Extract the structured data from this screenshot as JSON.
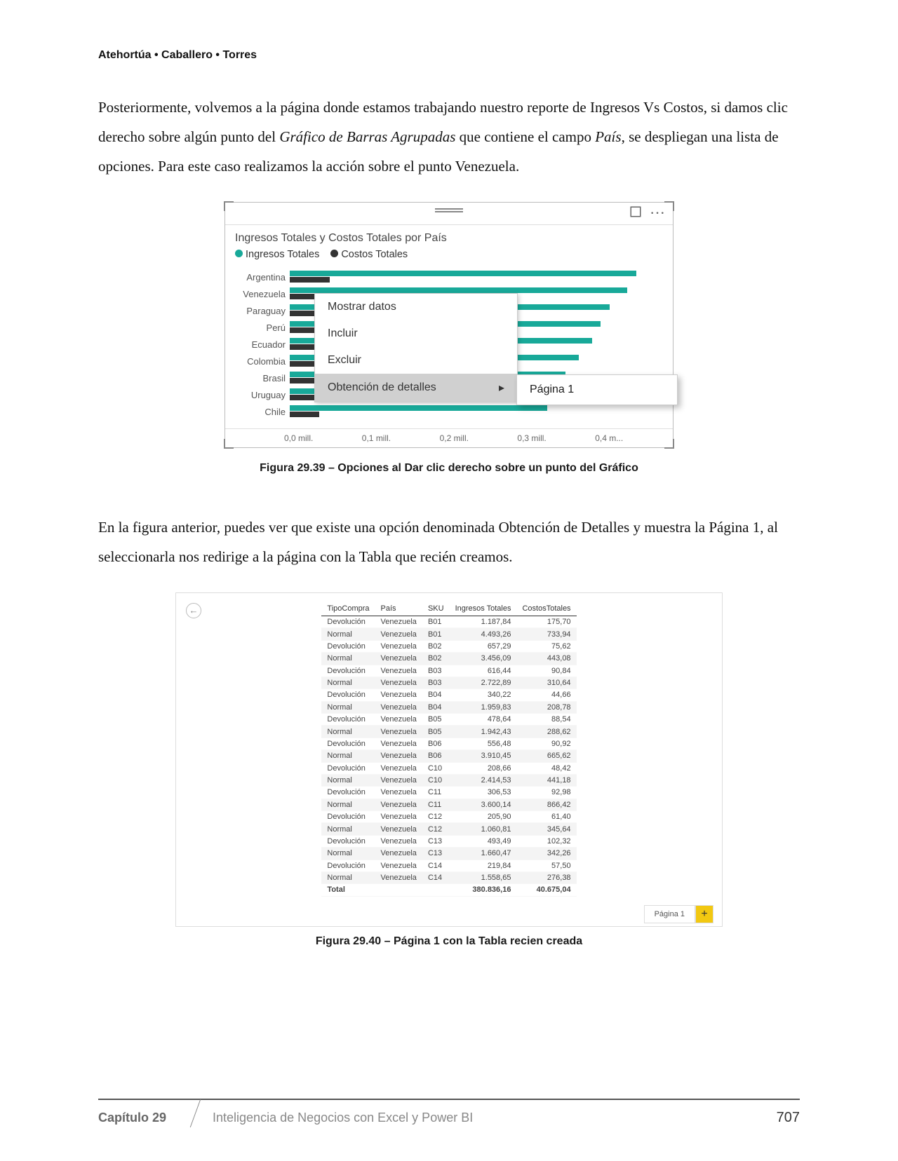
{
  "header": {
    "authors": "Atehortúa • Caballero • Torres"
  },
  "paragraphs": {
    "p1a": "Posteriormente, volvemos a la página donde estamos trabajando nuestro reporte de Ingresos Vs Costos, si damos clic derecho sobre algún punto del ",
    "p1b": "Gráfico de Barras Agrupadas",
    "p1c": " que contiene el campo ",
    "p1d": "País",
    "p1e": ", se despliegan una lista de opciones. Para este caso realizamos la acción sobre el punto Venezuela.",
    "p2": "En la figura anterior, puedes ver que existe una opción denominada Obtención de Detalles y muestra la Página 1, al seleccionarla nos redirige a la página con la Tabla que recién creamos."
  },
  "chart": {
    "title": "Ingresos Totales y Costos Totales por País",
    "legend1": "Ingresos Totales",
    "legend2": "Costos Totales",
    "color1": "#18a999",
    "color2": "#333333",
    "categories": [
      "Argentina",
      "Venezuela",
      "Paraguay",
      "Perú",
      "Ecuador",
      "Colombia",
      "Brasil",
      "Uruguay",
      "Chile"
    ],
    "ingresos": [
      0.39,
      0.38,
      0.36,
      0.35,
      0.34,
      0.325,
      0.31,
      0.3,
      0.29
    ],
    "costos": [
      0.045,
      0.042,
      0.04,
      0.038,
      0.037,
      0.036,
      0.035,
      0.034,
      0.033
    ],
    "xlim": 0.42,
    "xticks": [
      "0,0 mill.",
      "0,1 mill.",
      "0,2 mill.",
      "0,3 mill.",
      "0,4 m..."
    ],
    "ctx": {
      "item1": "Mostrar datos",
      "item2": "Incluir",
      "item3": "Excluir",
      "item4": "Obtención de detalles",
      "sub": "Página 1"
    }
  },
  "caption1": "Figura 29.39 – Opciones al Dar clic derecho sobre un punto del Gráfico",
  "table": {
    "columns": [
      "TipoCompra",
      "País",
      "SKU",
      "Ingresos Totales",
      "CostosTotales"
    ],
    "rows": [
      [
        "Devolución",
        "Venezuela",
        "B01",
        "1.187,84",
        "175,70"
      ],
      [
        "Normal",
        "Venezuela",
        "B01",
        "4.493,26",
        "733,94"
      ],
      [
        "Devolución",
        "Venezuela",
        "B02",
        "657,29",
        "75,62"
      ],
      [
        "Normal",
        "Venezuela",
        "B02",
        "3.456,09",
        "443,08"
      ],
      [
        "Devolución",
        "Venezuela",
        "B03",
        "616,44",
        "90,84"
      ],
      [
        "Normal",
        "Venezuela",
        "B03",
        "2.722,89",
        "310,64"
      ],
      [
        "Devolución",
        "Venezuela",
        "B04",
        "340,22",
        "44,66"
      ],
      [
        "Normal",
        "Venezuela",
        "B04",
        "1.959,83",
        "208,78"
      ],
      [
        "Devolución",
        "Venezuela",
        "B05",
        "478,64",
        "88,54"
      ],
      [
        "Normal",
        "Venezuela",
        "B05",
        "1.942,43",
        "288,62"
      ],
      [
        "Devolución",
        "Venezuela",
        "B06",
        "556,48",
        "90,92"
      ],
      [
        "Normal",
        "Venezuela",
        "B06",
        "3.910,45",
        "665,62"
      ],
      [
        "Devolución",
        "Venezuela",
        "C10",
        "208,66",
        "48,42"
      ],
      [
        "Normal",
        "Venezuela",
        "C10",
        "2.414,53",
        "441,18"
      ],
      [
        "Devolución",
        "Venezuela",
        "C11",
        "306,53",
        "92,98"
      ],
      [
        "Normal",
        "Venezuela",
        "C11",
        "3.600,14",
        "866,42"
      ],
      [
        "Devolución",
        "Venezuela",
        "C12",
        "205,90",
        "61,40"
      ],
      [
        "Normal",
        "Venezuela",
        "C12",
        "1.060,81",
        "345,64"
      ],
      [
        "Devolución",
        "Venezuela",
        "C13",
        "493,49",
        "102,32"
      ],
      [
        "Normal",
        "Venezuela",
        "C13",
        "1.660,47",
        "342,26"
      ],
      [
        "Devolución",
        "Venezuela",
        "C14",
        "219,84",
        "57,50"
      ],
      [
        "Normal",
        "Venezuela",
        "C14",
        "1.558,65",
        "276,38"
      ]
    ],
    "total_label": "Total",
    "total_ingresos": "380.836,16",
    "total_costos": "40.675,04",
    "tab": "Página 1"
  },
  "caption2": "Figura 29.40 – Página 1 con la Tabla recien creada",
  "footer": {
    "chapter": "Capítulo 29",
    "title": "Inteligencia de Negocios con Excel y Power BI",
    "page": "707"
  }
}
